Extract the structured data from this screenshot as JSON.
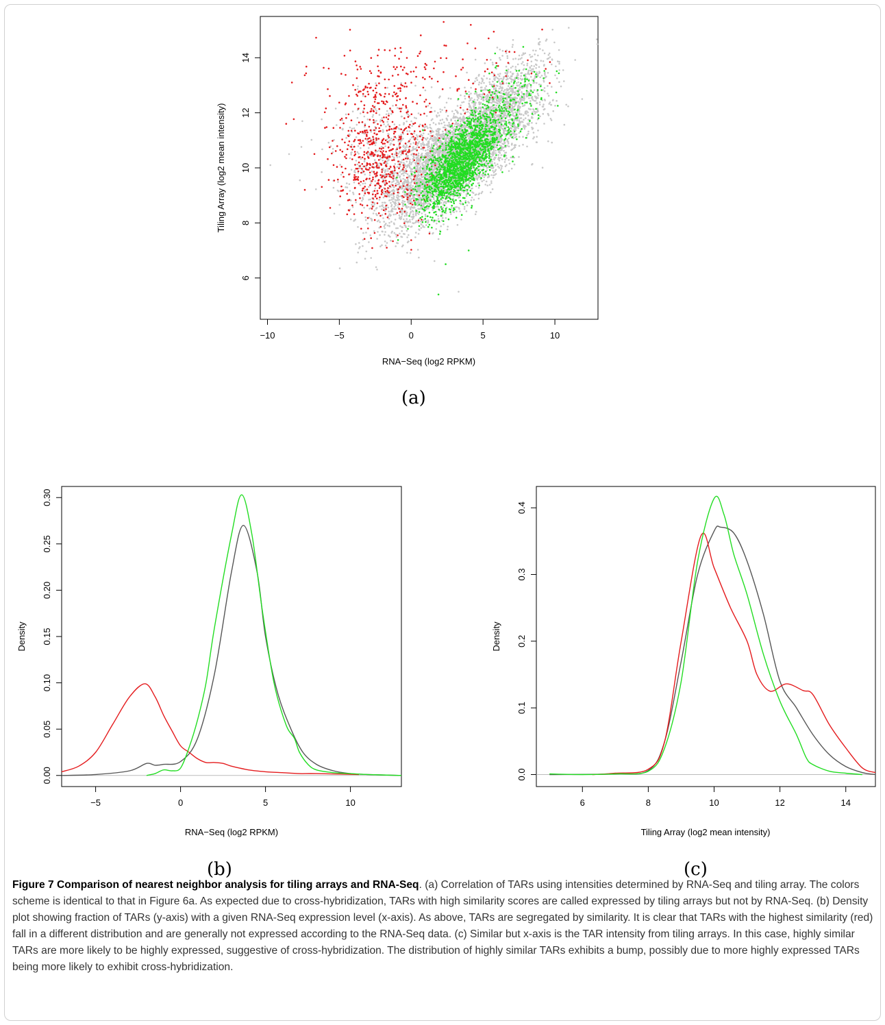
{
  "figure": {
    "panel_labels": [
      "(a)",
      "(b)",
      "(c)"
    ],
    "caption_label": "Figure 7",
    "caption_title": "Comparison of nearest neighbor analysis for tiling arrays and RNA-Seq",
    "caption_text": ". (a) Correlation of TARs using intensities determined by RNA-Seq and tiling array. The colors scheme is identical to that in Figure 6a. As expected due to cross-hybridization, TARs with high similarity scores are called expressed by tiling arrays but not by RNA-Seq. (b) Density plot showing fraction of TARs (y-axis) with a given RNA-Seq expression level (x-axis). As above, TARs are segregated by similarity. It is clear that TARs with the highest similarity (red) fall in a different distribution and are generally not expressed according to the RNA-Seq data. (c) Similar but x-axis is the TAR intensity from tiling arrays. In this case, highly similar TARs are more likely to be highly expressed, suggestive of cross-hybridization. The distribution of highly similar TARs exhibits a bump, possibly due to more highly expressed TARs being more likely to exhibit cross-hybridization."
  },
  "colors": {
    "gray": "#c8c8c8",
    "red": "#e41a1c",
    "green": "#22dd22",
    "dark": "#555555",
    "zero": "#bbbbbb"
  },
  "chart_data": [
    {
      "type": "scatter",
      "xlabel": "RNA−Seq (log2 RPKM)",
      "ylabel": "Tiling Array (log2 mean intensity)",
      "xlim": [
        -10.5,
        13
      ],
      "ylim": [
        4.5,
        15.5
      ],
      "xticks": [
        -10,
        -5,
        0,
        5,
        10
      ],
      "xtick_labels": [
        "−10",
        "−5",
        "0",
        "5",
        "10"
      ],
      "yticks": [
        6,
        8,
        10,
        12,
        14
      ],
      "ytick_labels": [
        "6",
        "8",
        "10",
        "12",
        "14"
      ],
      "series": [
        {
          "color": "gray",
          "clusters": [
            [
              3.0,
              10.3,
              2.4,
              1.15,
              4200,
              0.72
            ],
            [
              6.5,
              12.5,
              1.8,
              0.9,
              800,
              0.6
            ],
            [
              -1.5,
              10.5,
              2.0,
              1.0,
              500,
              0.0
            ]
          ]
        },
        {
          "color": "red",
          "clusters": [
            [
              -2.2,
              10.1,
              1.5,
              1.1,
              450,
              0.0
            ],
            [
              -2.0,
              12.2,
              2.2,
              1.1,
              220,
              0.0
            ],
            [
              3.0,
              13.5,
              3.0,
              0.7,
              70,
              0.0
            ]
          ]
        },
        {
          "color": "green",
          "clusters": [
            [
              3.4,
              10.2,
              1.3,
              0.85,
              1700,
              0.66
            ],
            [
              6.5,
              12.0,
              1.6,
              0.9,
              220,
              0.6
            ]
          ]
        }
      ],
      "outliers": [
        {
          "color": "green",
          "points": [
            [
              1.9,
              5.4
            ],
            [
              2.4,
              6.5
            ],
            [
              4.0,
              7.0
            ],
            [
              2.0,
              7.6
            ]
          ]
        },
        {
          "color": "red",
          "points": [
            [
              -8.3,
              13.1
            ],
            [
              -8.7,
              11.6
            ],
            [
              -3.0,
              7.8
            ],
            [
              -1.7,
              7.1
            ],
            [
              -7.4,
              9.2
            ]
          ]
        },
        {
          "color": "gray",
          "points": [
            [
              -9.8,
              10.1
            ],
            [
              -3.2,
              6.7
            ],
            [
              3.3,
              5.5
            ],
            [
              11.9,
              12.5
            ],
            [
              -8.5,
              10.5
            ]
          ]
        }
      ]
    },
    {
      "type": "line",
      "xlabel": "RNA−Seq (log2 RPKM)",
      "ylabel": "Density",
      "xlim": [
        -7,
        13
      ],
      "ylim": [
        -0.012,
        0.312
      ],
      "xticks": [
        -5,
        0,
        5,
        10
      ],
      "xtick_labels": [
        "−5",
        "0",
        "5",
        "10"
      ],
      "yticks": [
        0,
        0.05,
        0.1,
        0.15,
        0.2,
        0.25,
        0.3
      ],
      "ytick_labels": [
        "0.00",
        "0.05",
        "0.10",
        "0.15",
        "0.20",
        "0.25",
        "0.30"
      ],
      "series": [
        {
          "color": "dark",
          "points": [
            [
              -7,
              0
            ],
            [
              -5,
              0.001
            ],
            [
              -3,
              0.005
            ],
            [
              -2,
              0.013
            ],
            [
              -1.5,
              0.011
            ],
            [
              -1,
              0.012
            ],
            [
              0,
              0.015
            ],
            [
              1,
              0.04
            ],
            [
              2,
              0.11
            ],
            [
              3,
              0.22
            ],
            [
              3.7,
              0.27
            ],
            [
              4.5,
              0.22
            ],
            [
              5,
              0.15
            ],
            [
              5.7,
              0.09
            ],
            [
              6.5,
              0.05
            ],
            [
              7.2,
              0.025
            ],
            [
              8,
              0.012
            ],
            [
              9,
              0.005
            ],
            [
              10,
              0.002
            ],
            [
              11,
              0.001
            ],
            [
              13,
              0
            ]
          ]
        },
        {
          "color": "red",
          "points": [
            [
              -7,
              0.004
            ],
            [
              -6,
              0.01
            ],
            [
              -5,
              0.025
            ],
            [
              -4,
              0.055
            ],
            [
              -3,
              0.085
            ],
            [
              -2.1,
              0.099
            ],
            [
              -1.5,
              0.085
            ],
            [
              -1,
              0.065
            ],
            [
              -0.5,
              0.048
            ],
            [
              0,
              0.032
            ],
            [
              0.5,
              0.025
            ],
            [
              1,
              0.018
            ],
            [
              1.5,
              0.014
            ],
            [
              2,
              0.014
            ],
            [
              2.5,
              0.013
            ],
            [
              3,
              0.01
            ],
            [
              4,
              0.006
            ],
            [
              5,
              0.004
            ],
            [
              6,
              0.003
            ],
            [
              7,
              0.002
            ],
            [
              8,
              0.002
            ],
            [
              10.5,
              0.001
            ]
          ]
        },
        {
          "color": "green",
          "points": [
            [
              -2,
              0
            ],
            [
              -1.5,
              0.002
            ],
            [
              -1,
              0.006
            ],
            [
              -0.5,
              0.005
            ],
            [
              0,
              0.008
            ],
            [
              0.5,
              0.03
            ],
            [
              1,
              0.06
            ],
            [
              1.5,
              0.1
            ],
            [
              2,
              0.16
            ],
            [
              3,
              0.26
            ],
            [
              3.6,
              0.303
            ],
            [
              4.2,
              0.26
            ],
            [
              4.8,
              0.18
            ],
            [
              5.5,
              0.1
            ],
            [
              6.2,
              0.055
            ],
            [
              6.7,
              0.04
            ],
            [
              7,
              0.025
            ],
            [
              7.5,
              0.012
            ],
            [
              8,
              0.006
            ],
            [
              9,
              0.003
            ],
            [
              10,
              0.002
            ],
            [
              11,
              0.001
            ],
            [
              13,
              0
            ]
          ]
        }
      ]
    },
    {
      "type": "line",
      "xlabel": "Tiling Array (log2 mean intensity)",
      "ylabel": "Density",
      "xlim": [
        4.6,
        14.9
      ],
      "ylim": [
        -0.018,
        0.432
      ],
      "xticks": [
        6,
        8,
        10,
        12,
        14
      ],
      "xtick_labels": [
        "6",
        "8",
        "10",
        "12",
        "14"
      ],
      "yticks": [
        0,
        0.1,
        0.2,
        0.3,
        0.4
      ],
      "ytick_labels": [
        "0.0",
        "0.1",
        "0.2",
        "0.3",
        "0.4"
      ],
      "series": [
        {
          "color": "dark",
          "points": [
            [
              5,
              0
            ],
            [
              7,
              0.001
            ],
            [
              8,
              0.006
            ],
            [
              8.5,
              0.05
            ],
            [
              9,
              0.17
            ],
            [
              9.5,
              0.3
            ],
            [
              10,
              0.365
            ],
            [
              10.2,
              0.371
            ],
            [
              10.6,
              0.362
            ],
            [
              11,
              0.32
            ],
            [
              11.5,
              0.24
            ],
            [
              12,
              0.14
            ],
            [
              12.5,
              0.1
            ],
            [
              13,
              0.06
            ],
            [
              13.5,
              0.03
            ],
            [
              14,
              0.012
            ],
            [
              14.5,
              0.003
            ],
            [
              14.9,
              0
            ]
          ]
        },
        {
          "color": "red",
          "points": [
            [
              6.3,
              0
            ],
            [
              7,
              0.002
            ],
            [
              8,
              0.008
            ],
            [
              8.5,
              0.05
            ],
            [
              9,
              0.2
            ],
            [
              9.6,
              0.358
            ],
            [
              10,
              0.31
            ],
            [
              10.5,
              0.25
            ],
            [
              11,
              0.2
            ],
            [
              11.3,
              0.15
            ],
            [
              11.7,
              0.125
            ],
            [
              12.2,
              0.136
            ],
            [
              12.7,
              0.126
            ],
            [
              13,
              0.12
            ],
            [
              13.5,
              0.075
            ],
            [
              14,
              0.04
            ],
            [
              14.5,
              0.01
            ],
            [
              14.9,
              0.003
            ]
          ]
        },
        {
          "color": "green",
          "points": [
            [
              5,
              0.001
            ],
            [
              6,
              0
            ],
            [
              7,
              0.001
            ],
            [
              8,
              0.005
            ],
            [
              8.5,
              0.04
            ],
            [
              9,
              0.14
            ],
            [
              9.5,
              0.32
            ],
            [
              10,
              0.414
            ],
            [
              10.3,
              0.39
            ],
            [
              10.6,
              0.33
            ],
            [
              11,
              0.27
            ],
            [
              11.5,
              0.18
            ],
            [
              12,
              0.11
            ],
            [
              12.5,
              0.06
            ],
            [
              12.8,
              0.025
            ],
            [
              13,
              0.015
            ],
            [
              13.5,
              0.005
            ],
            [
              14,
              0.002
            ],
            [
              14.5,
              0
            ]
          ]
        }
      ]
    }
  ]
}
